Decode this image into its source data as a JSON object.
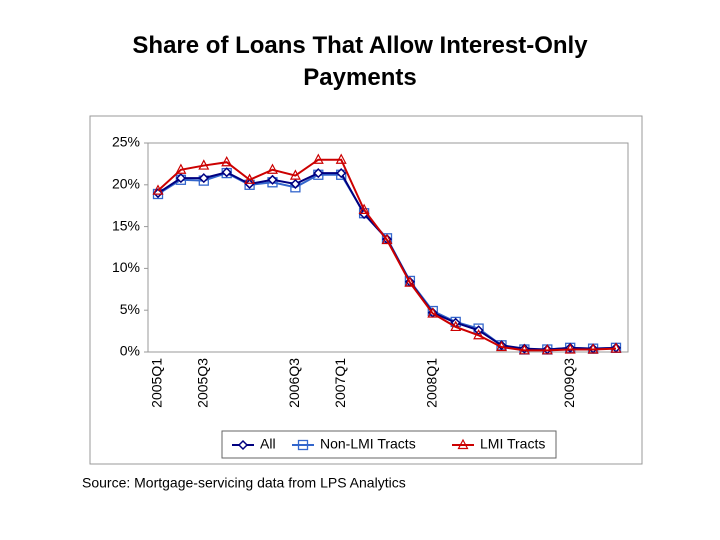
{
  "chart_data": {
    "type": "line",
    "title": "Share of Loans That Allow Interest-Only Payments",
    "source": "Source: Mortgage-servicing data from LPS Analytics",
    "categories": [
      "2005Q1",
      null,
      "2005Q3",
      null,
      null,
      null,
      "2006Q3",
      null,
      "2007Q1",
      null,
      null,
      null,
      "2008Q1",
      null,
      null,
      null,
      null,
      null,
      "2009Q3",
      null,
      null
    ],
    "series": [
      {
        "name": "All",
        "color": "#000080",
        "marker": "diamond",
        "values": [
          19.0,
          20.8,
          20.8,
          21.5,
          20.1,
          20.6,
          20.1,
          21.4,
          21.4,
          16.5,
          13.5,
          8.4,
          4.7,
          3.5,
          2.6,
          0.8,
          0.4,
          0.3,
          0.5,
          0.4,
          0.5
        ]
      },
      {
        "name": "Non-LMI Tracts",
        "color": "#3366cc",
        "marker": "square",
        "values": [
          18.9,
          20.6,
          20.5,
          21.4,
          20.0,
          20.3,
          19.7,
          21.2,
          21.2,
          16.6,
          13.6,
          8.5,
          4.9,
          3.6,
          2.8,
          0.8,
          0.3,
          0.3,
          0.5,
          0.4,
          0.5
        ]
      },
      {
        "name": "LMI Tracts",
        "color": "#cc0000",
        "marker": "triangle",
        "values": [
          19.3,
          21.8,
          22.3,
          22.7,
          20.6,
          21.8,
          21.1,
          23.0,
          23.0,
          17.0,
          13.4,
          8.3,
          4.6,
          3.0,
          2.0,
          0.6,
          0.2,
          0.2,
          0.3,
          0.3,
          0.4
        ]
      }
    ],
    "ylim": [
      0,
      25
    ],
    "yticks": [
      {
        "value": 0,
        "label": "0%"
      },
      {
        "value": 5,
        "label": "5%"
      },
      {
        "value": 10,
        "label": "10%"
      },
      {
        "value": 15,
        "label": "15%"
      },
      {
        "value": 20,
        "label": "20%"
      },
      {
        "value": 25,
        "label": "25%"
      }
    ],
    "grid": false,
    "legend": "bottom"
  }
}
